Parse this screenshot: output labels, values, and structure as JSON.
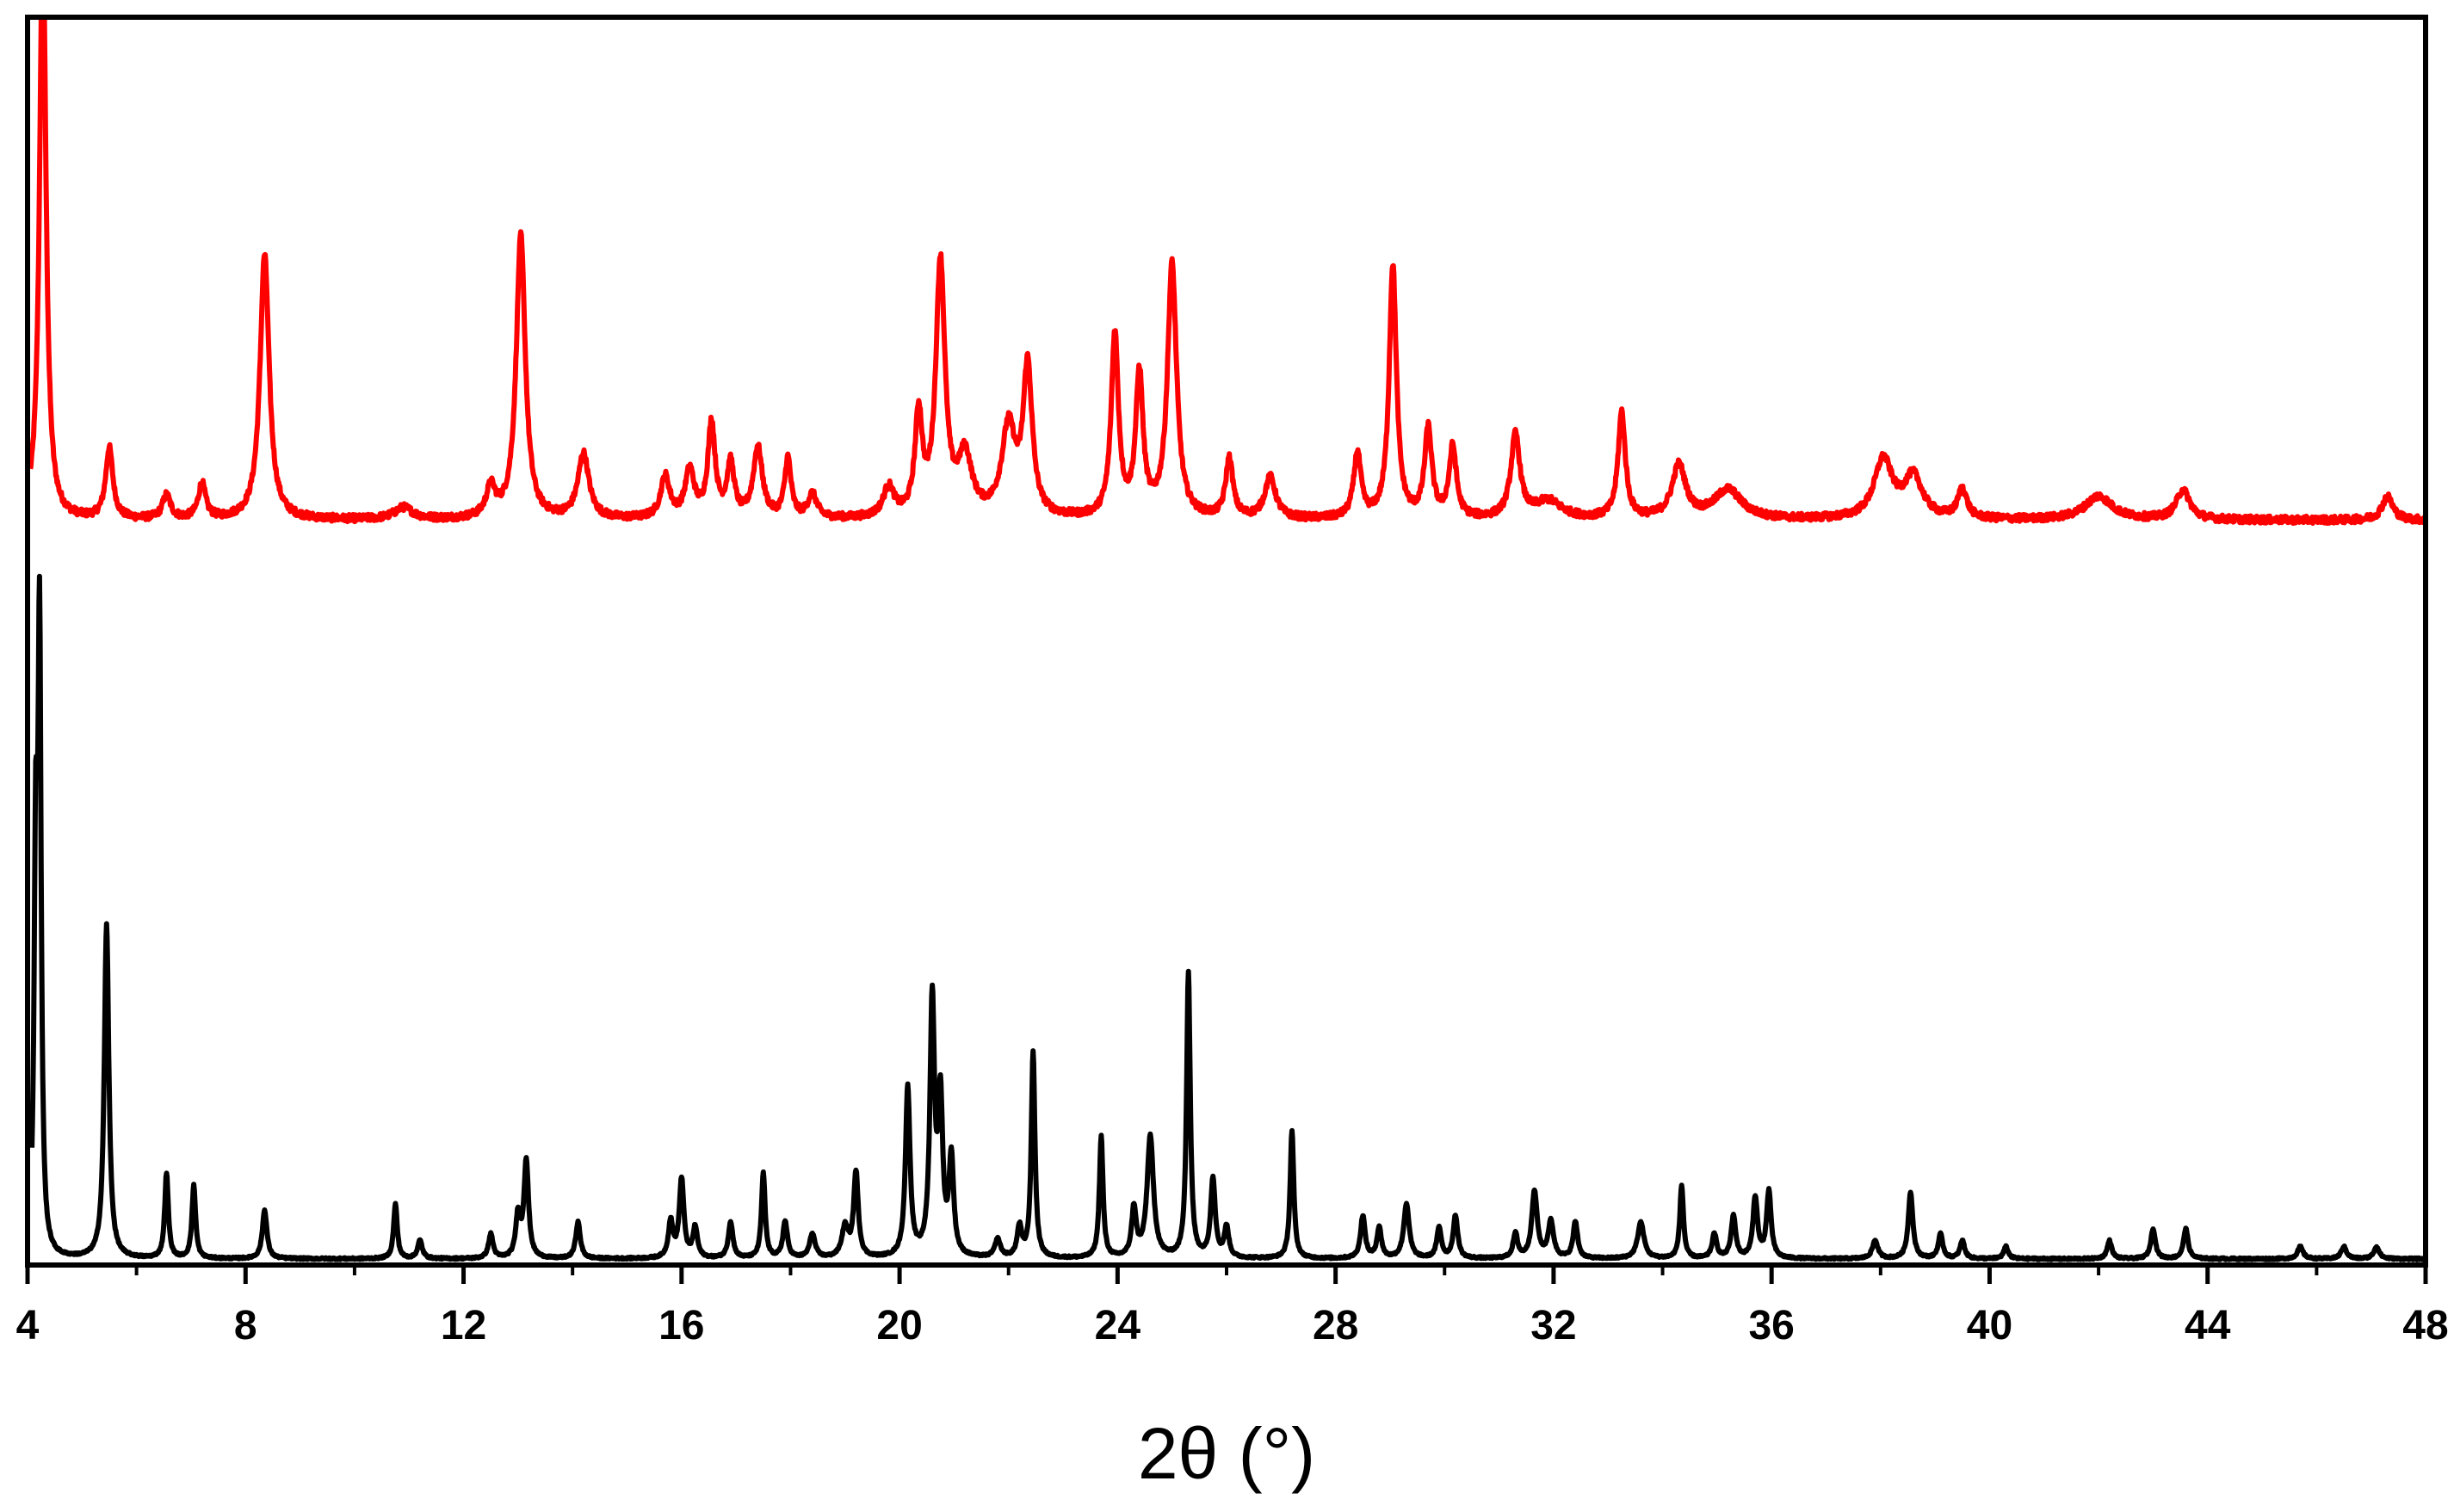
{
  "chart_data": {
    "type": "line",
    "xlabel": "2θ (°)",
    "ylabel": "",
    "xlim": [
      4,
      48
    ],
    "xticks": [
      "4",
      "8",
      "12",
      "16",
      "20",
      "24",
      "28",
      "32",
      "36",
      "40",
      "44",
      "48"
    ],
    "yticks": [],
    "grid": false,
    "legend": "none",
    "series": [
      {
        "color": "#ff0000",
        "baseline": 0.18,
        "noise": 0.012,
        "peaks": [
          [
            4.28,
            1.0,
            0.07
          ],
          [
            5.5,
            0.12,
            0.08
          ],
          [
            6.55,
            0.04,
            0.09
          ],
          [
            7.2,
            0.06,
            0.08
          ],
          [
            8.35,
            0.45,
            0.1
          ],
          [
            10.9,
            0.02,
            0.2
          ],
          [
            12.5,
            0.05,
            0.1
          ],
          [
            13.05,
            0.48,
            0.1
          ],
          [
            14.2,
            0.11,
            0.12
          ],
          [
            15.7,
            0.07,
            0.1
          ],
          [
            16.15,
            0.08,
            0.1
          ],
          [
            16.55,
            0.16,
            0.08
          ],
          [
            16.9,
            0.09,
            0.08
          ],
          [
            17.4,
            0.12,
            0.1
          ],
          [
            17.95,
            0.1,
            0.07
          ],
          [
            18.4,
            0.04,
            0.1
          ],
          [
            19.8,
            0.05,
            0.12
          ],
          [
            20.35,
            0.17,
            0.08
          ],
          [
            20.75,
            0.43,
            0.1
          ],
          [
            21.2,
            0.1,
            0.15
          ],
          [
            22.0,
            0.15,
            0.15
          ],
          [
            22.35,
            0.25,
            0.1
          ],
          [
            23.95,
            0.31,
            0.08
          ],
          [
            24.4,
            0.24,
            0.08
          ],
          [
            25.0,
            0.43,
            0.1
          ],
          [
            26.05,
            0.1,
            0.08
          ],
          [
            26.8,
            0.07,
            0.12
          ],
          [
            28.4,
            0.11,
            0.08
          ],
          [
            29.05,
            0.43,
            0.08
          ],
          [
            29.7,
            0.15,
            0.08
          ],
          [
            30.15,
            0.12,
            0.08
          ],
          [
            31.3,
            0.14,
            0.1
          ],
          [
            31.9,
            0.03,
            0.3
          ],
          [
            33.25,
            0.18,
            0.08
          ],
          [
            34.3,
            0.09,
            0.15
          ],
          [
            35.2,
            0.05,
            0.3
          ],
          [
            38.05,
            0.1,
            0.2
          ],
          [
            38.6,
            0.07,
            0.2
          ],
          [
            39.5,
            0.05,
            0.1
          ],
          [
            42.0,
            0.04,
            0.3
          ],
          [
            43.55,
            0.05,
            0.15
          ],
          [
            47.3,
            0.04,
            0.12
          ]
        ]
      },
      {
        "color": "#000000",
        "baseline": 0.0,
        "noise": 0.003,
        "peaks": [
          [
            4.15,
            0.62,
            0.035
          ],
          [
            4.22,
            1.0,
            0.035
          ],
          [
            5.45,
            0.55,
            0.05
          ],
          [
            6.55,
            0.14,
            0.04
          ],
          [
            7.05,
            0.12,
            0.04
          ],
          [
            8.35,
            0.08,
            0.05
          ],
          [
            10.75,
            0.09,
            0.04
          ],
          [
            11.2,
            0.03,
            0.05
          ],
          [
            12.5,
            0.04,
            0.05
          ],
          [
            13.0,
            0.07,
            0.05
          ],
          [
            13.15,
            0.16,
            0.05
          ],
          [
            14.1,
            0.06,
            0.05
          ],
          [
            15.8,
            0.06,
            0.05
          ],
          [
            16.0,
            0.13,
            0.05
          ],
          [
            16.25,
            0.05,
            0.05
          ],
          [
            16.9,
            0.06,
            0.05
          ],
          [
            17.5,
            0.14,
            0.04
          ],
          [
            17.9,
            0.06,
            0.05
          ],
          [
            18.4,
            0.04,
            0.06
          ],
          [
            19.0,
            0.05,
            0.07
          ],
          [
            19.2,
            0.14,
            0.05
          ],
          [
            20.15,
            0.28,
            0.05
          ],
          [
            20.6,
            0.42,
            0.05
          ],
          [
            20.75,
            0.25,
            0.05
          ],
          [
            20.95,
            0.16,
            0.05
          ],
          [
            21.8,
            0.03,
            0.06
          ],
          [
            22.2,
            0.05,
            0.05
          ],
          [
            22.45,
            0.34,
            0.04
          ],
          [
            23.7,
            0.2,
            0.04
          ],
          [
            24.3,
            0.08,
            0.05
          ],
          [
            24.6,
            0.2,
            0.07
          ],
          [
            25.3,
            0.47,
            0.04
          ],
          [
            25.75,
            0.13,
            0.05
          ],
          [
            26.0,
            0.05,
            0.05
          ],
          [
            27.2,
            0.21,
            0.04
          ],
          [
            28.5,
            0.07,
            0.05
          ],
          [
            28.8,
            0.05,
            0.05
          ],
          [
            29.3,
            0.09,
            0.06
          ],
          [
            29.9,
            0.05,
            0.05
          ],
          [
            30.2,
            0.07,
            0.05
          ],
          [
            31.3,
            0.04,
            0.05
          ],
          [
            31.65,
            0.11,
            0.06
          ],
          [
            31.95,
            0.06,
            0.06
          ],
          [
            32.4,
            0.06,
            0.05
          ],
          [
            33.6,
            0.06,
            0.07
          ],
          [
            34.35,
            0.12,
            0.04
          ],
          [
            34.95,
            0.04,
            0.05
          ],
          [
            35.3,
            0.07,
            0.05
          ],
          [
            35.7,
            0.1,
            0.05
          ],
          [
            35.95,
            0.11,
            0.05
          ],
          [
            37.9,
            0.03,
            0.06
          ],
          [
            38.55,
            0.11,
            0.05
          ],
          [
            39.1,
            0.04,
            0.05
          ],
          [
            39.5,
            0.03,
            0.05
          ],
          [
            40.3,
            0.02,
            0.05
          ],
          [
            42.2,
            0.03,
            0.05
          ],
          [
            43.0,
            0.05,
            0.05
          ],
          [
            43.6,
            0.05,
            0.05
          ],
          [
            45.7,
            0.02,
            0.06
          ],
          [
            46.5,
            0.02,
            0.06
          ],
          [
            47.1,
            0.02,
            0.06
          ]
        ]
      }
    ]
  }
}
